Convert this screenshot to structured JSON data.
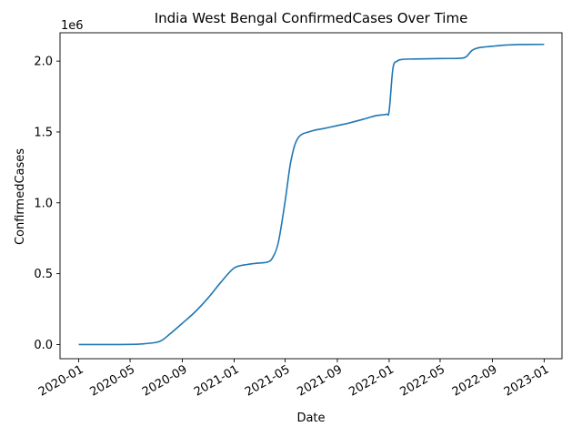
{
  "chart_data": {
    "type": "line",
    "title": "India West Bengal ConfirmedCases Over Time",
    "xlabel": "Date",
    "ylabel": "ConfirmedCases",
    "y_offset_label": "1e6",
    "y_ticks": [
      0.0,
      0.5,
      1.0,
      1.5,
      2.0
    ],
    "y_tick_labels": [
      "0.0",
      "0.5",
      "1.0",
      "1.5",
      "2.0"
    ],
    "ylim": [
      -100000,
      2200000
    ],
    "xlim": [
      "2019-11-18",
      "2023-02-12"
    ],
    "x_tick_labels": [
      "2020-01",
      "2020-05",
      "2020-09",
      "2021-01",
      "2021-05",
      "2021-09",
      "2022-01",
      "2022-05",
      "2022-09",
      "2023-01"
    ],
    "grid": false,
    "series": [
      {
        "color": "#1f77b4",
        "x": [
          "2020-01-01",
          "2020-03-01",
          "2020-05-01",
          "2020-06-01",
          "2020-07-01",
          "2020-07-15",
          "2020-08-01",
          "2020-09-01",
          "2020-10-01",
          "2020-11-01",
          "2020-12-01",
          "2021-01-01",
          "2021-02-01",
          "2021-03-01",
          "2021-03-20",
          "2021-04-01",
          "2021-04-15",
          "2021-05-01",
          "2021-05-15",
          "2021-06-01",
          "2021-07-01",
          "2021-08-01",
          "2021-09-01",
          "2021-10-01",
          "2021-11-01",
          "2021-12-01",
          "2021-12-25",
          "2022-01-01",
          "2022-01-10",
          "2022-01-20",
          "2022-02-01",
          "2022-03-01",
          "2022-05-01",
          "2022-06-15",
          "2022-07-01",
          "2022-07-15",
          "2022-08-01",
          "2022-09-01",
          "2022-10-01",
          "2022-11-01",
          "2023-01-01"
        ],
        "y": [
          0,
          0,
          500,
          5000,
          15000,
          30000,
          70000,
          150000,
          230000,
          330000,
          440000,
          540000,
          565000,
          575000,
          582000,
          610000,
          720000,
          1010000,
          1300000,
          1460000,
          1505000,
          1525000,
          1545000,
          1565000,
          1590000,
          1615000,
          1625000,
          1650000,
          1950000,
          2000000,
          2012000,
          2015000,
          2018000,
          2020000,
          2030000,
          2075000,
          2095000,
          2105000,
          2113000,
          2117000,
          2118000
        ]
      }
    ]
  }
}
